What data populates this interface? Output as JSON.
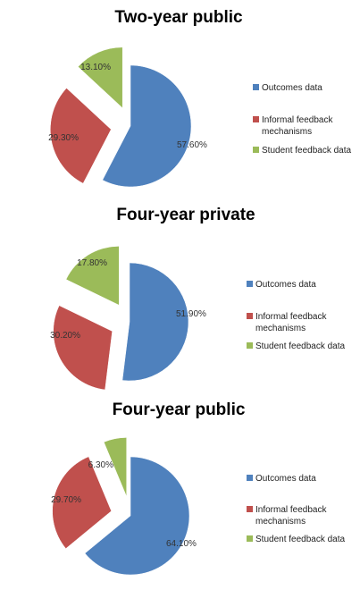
{
  "colors": {
    "outcomes": "#4f81bd",
    "informal": "#c0504d",
    "student": "#9bbb59"
  },
  "chart_data": [
    {
      "type": "pie",
      "title": "Two-year public",
      "slices": [
        {
          "label": "Outcomes data",
          "value": 57.6,
          "value_label": "57.60%",
          "color": "#4f81bd"
        },
        {
          "label": "Informal feedback mechanisms",
          "value": 29.3,
          "value_label": "29.30%",
          "color": "#c0504d"
        },
        {
          "label": "Student feedback data",
          "value": 13.1,
          "value_label": "13.10%",
          "color": "#9bbb59"
        }
      ],
      "legend": [
        "Outcomes data",
        "Informal feedback",
        "mechanisms",
        "Student feedback data"
      ],
      "legend_position": "right"
    },
    {
      "type": "pie",
      "title": "Four-year private",
      "slices": [
        {
          "label": "Outcomes data",
          "value": 51.9,
          "value_label": "51.90%",
          "color": "#4f81bd"
        },
        {
          "label": "Informal feedback mechanisms",
          "value": 30.2,
          "value_label": "30.20%",
          "color": "#c0504d"
        },
        {
          "label": "Student feedback data",
          "value": 17.8,
          "value_label": "17.80%",
          "color": "#9bbb59"
        }
      ],
      "legend": [
        "Outcomes data",
        "Informal feedback",
        "mechanisms",
        "Student feedback data"
      ],
      "legend_position": "right"
    },
    {
      "type": "pie",
      "title": "Four-year public",
      "slices": [
        {
          "label": "Outcomes data",
          "value": 64.1,
          "value_label": "64.10%",
          "color": "#4f81bd"
        },
        {
          "label": "Informal feedback mechanisms",
          "value": 29.7,
          "value_label": "29.70%",
          "color": "#c0504d"
        },
        {
          "label": "Student feedback data",
          "value": 6.3,
          "value_label": "6.30%",
          "color": "#9bbb59"
        }
      ],
      "legend": [
        "Outcomes data",
        "Informal feedback",
        "mechanisms",
        "Student feedback data"
      ],
      "legend_position": "right"
    }
  ]
}
